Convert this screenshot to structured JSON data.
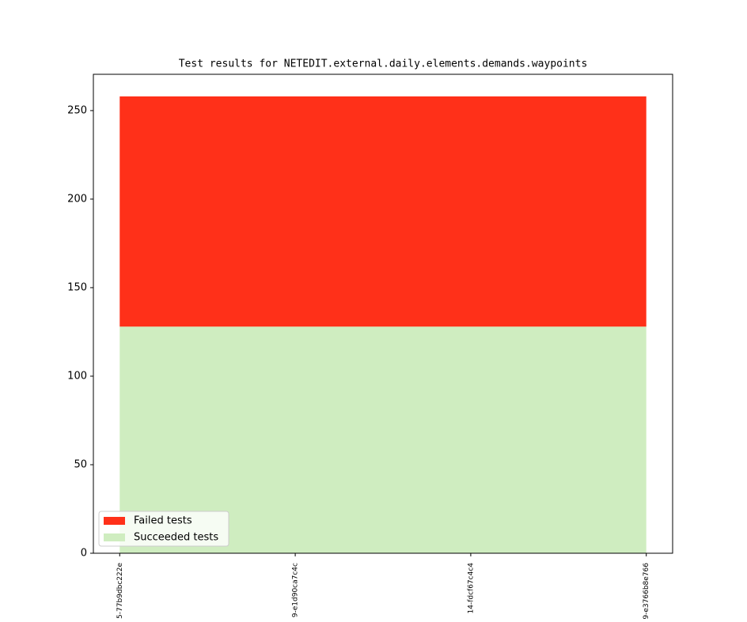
{
  "chart_data": {
    "type": "area",
    "stacked": true,
    "title": "Test results for NETEDIT.external.daily.elements.demands.waypoints",
    "categories": [
      "5-77b9dbc222e",
      "9-e1d90ca7c4c",
      "14-fdcf67c4c4",
      "9-e3766b8e766"
    ],
    "series": [
      {
        "name": "Failed tests",
        "color": "#ff3019",
        "values": [
          130,
          130,
          130,
          130
        ]
      },
      {
        "name": "Succeeded tests",
        "color": "#cfedc0",
        "values": [
          128,
          128,
          128,
          128
        ]
      }
    ],
    "ylim": [
      0,
      270.5
    ],
    "yticks": [
      0,
      50,
      100,
      150,
      200,
      250
    ],
    "legend": "lower left",
    "grid": false
  }
}
